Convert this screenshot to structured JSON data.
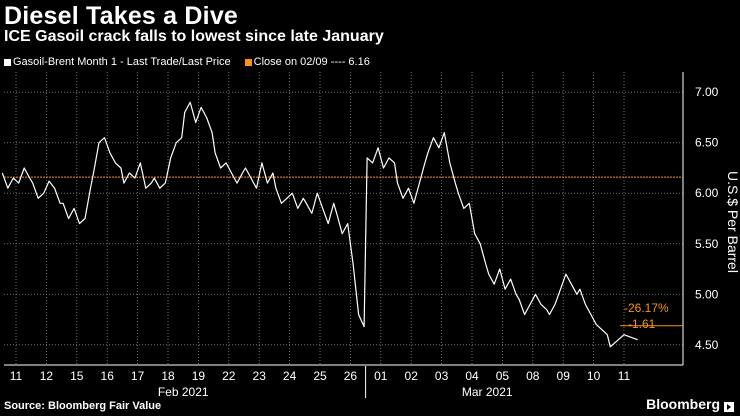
{
  "title": "Diesel Takes a Dive",
  "subtitle": "ICE Gasoil crack falls to lowest since late January",
  "legend": {
    "series_label": "Gasoil-Brent Month 1 - Last Trade/Last Price",
    "close_label": "Close on 02/09 ---- 6.16"
  },
  "source": "Source: Bloomberg Fair Value",
  "brand": "Bloomberg",
  "colors": {
    "background": "#000000",
    "series": "#ffffff",
    "reference": "#f7931e",
    "grid": "#8a8a8a"
  },
  "chart_data": {
    "type": "line",
    "title": "Diesel Takes a Dive",
    "subtitle": "ICE Gasoil crack falls to lowest since late January",
    "ylabel": "U.S.$ Per Barrel",
    "xlabel": "",
    "ylim": [
      4.3,
      7.2
    ],
    "yticks": [
      4.5,
      5.0,
      5.5,
      6.0,
      6.5,
      7.0
    ],
    "ytick_labels": [
      "4.50",
      "5.00",
      "5.50",
      "6.00",
      "6.50",
      "7.00"
    ],
    "grid": true,
    "legend_position": "top-left",
    "categories": [
      "11",
      "12",
      "15",
      "16",
      "17",
      "18",
      "19",
      "22",
      "23",
      "24",
      "25",
      "26",
      "01",
      "02",
      "03",
      "04",
      "05",
      "08",
      "09",
      "10",
      "11"
    ],
    "month_labels": [
      {
        "label": "Feb 2021",
        "between": [
          "18",
          "19"
        ]
      },
      {
        "label": "Mar 2021",
        "between": [
          "04",
          "05"
        ]
      }
    ],
    "series": [
      {
        "name": "Gasoil-Brent Month 1 - Last Trade/Last Price",
        "values": [
          [
            6.2,
            6.05,
            6.15,
            6.1,
            6.25,
            6.15
          ],
          [
            6.1,
            5.95,
            6.0,
            6.12,
            6.05,
            5.9
          ],
          [
            5.9,
            5.75,
            5.85,
            5.7,
            5.75,
            6.05
          ],
          [
            6.2,
            6.5,
            6.55,
            6.4,
            6.3,
            6.25
          ],
          [
            6.1,
            6.2,
            6.15,
            6.3,
            6.05,
            6.1
          ],
          [
            6.15,
            6.05,
            6.1,
            6.35,
            6.5,
            6.55
          ],
          [
            6.8,
            6.9,
            6.7,
            6.85,
            6.75,
            6.6
          ],
          [
            6.4,
            6.25,
            6.3,
            6.2,
            6.1,
            6.2
          ],
          [
            6.25,
            6.15,
            6.05,
            6.3,
            6.1,
            6.2
          ],
          [
            6.05,
            5.9,
            5.95,
            6.0,
            5.85,
            5.95
          ],
          [
            5.9,
            5.8,
            6.0,
            5.85,
            5.7,
            5.9
          ],
          [
            5.8,
            5.6,
            5.7,
            5.3,
            4.8,
            4.68
          ],
          [
            6.35,
            6.3,
            6.45,
            6.25,
            6.35,
            6.3
          ],
          [
            6.1,
            5.95,
            6.05,
            5.9,
            6.1,
            6.3
          ],
          [
            6.4,
            6.55,
            6.45,
            6.6,
            6.3,
            6.1
          ],
          [
            6.0,
            5.85,
            5.9,
            5.6,
            5.5,
            5.3
          ],
          [
            5.2,
            5.1,
            5.25,
            5.05,
            5.15,
            5.0
          ],
          [
            4.95,
            4.8,
            4.9,
            5.0,
            4.9,
            4.85
          ],
          [
            4.8,
            4.9,
            5.05,
            5.2,
            5.1,
            5.0
          ],
          [
            5.05,
            4.9,
            4.8,
            4.7,
            4.65,
            4.6
          ],
          [
            4.48,
            4.6,
            4.55
          ]
        ]
      }
    ],
    "reference_line": {
      "label": "Close on 02/09",
      "value": 6.16
    },
    "annotations": [
      {
        "text": "-26.17%",
        "color": "#f7931e"
      },
      {
        "text": "-1.61",
        "color": "#f7931e"
      }
    ],
    "last_value": 4.55
  }
}
